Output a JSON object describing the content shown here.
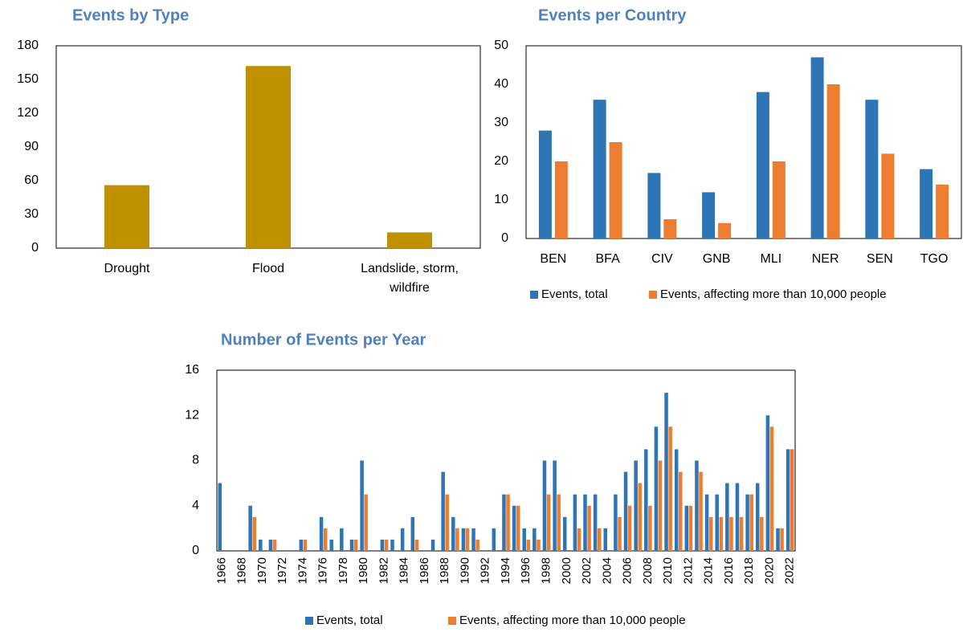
{
  "chart_data": [
    {
      "type": "bar",
      "title": "Events by Type",
      "categories": [
        "Drought",
        "Flood",
        "Landslide, storm, wildfire"
      ],
      "values": [
        56,
        162,
        14
      ],
      "color": "#bf9000",
      "ylim": [
        0,
        180
      ],
      "yticks": [
        0,
        30,
        60,
        90,
        120,
        150,
        180
      ],
      "grid": false
    },
    {
      "type": "bar",
      "title": "Events per Country",
      "categories": [
        "BEN",
        "BFA",
        "CIV",
        "GNB",
        "MLI",
        "NER",
        "SEN",
        "TGO"
      ],
      "series": [
        {
          "name": "Events, total",
          "color": "#2e75b6",
          "values": [
            28,
            36,
            17,
            12,
            38,
            47,
            36,
            18
          ]
        },
        {
          "name": "Events, affecting more than 10,000 people",
          "color": "#ed7d31",
          "values": [
            20,
            25,
            5,
            4,
            20,
            40,
            22,
            14
          ]
        }
      ],
      "ylim": [
        0,
        50
      ],
      "yticks": [
        0,
        10,
        20,
        30,
        40,
        50
      ],
      "grid": false,
      "legend": "bottom-left"
    },
    {
      "type": "bar",
      "title": "Number of Events per Year",
      "categories": [
        "1966",
        null,
        "1968",
        null,
        "1970",
        null,
        "1972",
        null,
        "1974",
        null,
        "1976",
        null,
        "1978",
        null,
        "1980",
        null,
        "1982",
        null,
        "1984",
        null,
        "1986",
        null,
        "1988",
        null,
        "1990",
        null,
        "1992",
        null,
        "1994",
        null,
        "1996",
        null,
        "1998",
        null,
        "2000",
        null,
        "2002",
        null,
        "2004",
        null,
        "2006",
        null,
        "2008",
        null,
        "2010",
        null,
        "2012",
        null,
        "2014",
        null,
        "2016",
        null,
        "2018",
        null,
        "2020",
        null,
        "2022"
      ],
      "series": [
        {
          "name": "Events, total",
          "color": "#2e75b6",
          "values": [
            6,
            0,
            0,
            4,
            1,
            1,
            0,
            0,
            1,
            0,
            3,
            1,
            2,
            1,
            8,
            0,
            1,
            1,
            2,
            3,
            0,
            1,
            7,
            3,
            2,
            2,
            0,
            2,
            5,
            4,
            2,
            2,
            8,
            8,
            3,
            5,
            5,
            5,
            2,
            5,
            7,
            8,
            9,
            11,
            14,
            9,
            4,
            8,
            5,
            5,
            6,
            6,
            5,
            6,
            12,
            2,
            9
          ]
        },
        {
          "name": "Events, affecting more than 10,000 people",
          "color": "#ed7d31",
          "values": [
            0,
            0,
            0,
            3,
            0,
            1,
            0,
            0,
            1,
            0,
            2,
            0,
            0,
            1,
            5,
            0,
            1,
            0,
            0,
            1,
            0,
            0,
            5,
            2,
            2,
            1,
            0,
            0,
            5,
            4,
            1,
            1,
            5,
            5,
            0,
            2,
            4,
            2,
            0,
            3,
            4,
            6,
            4,
            8,
            11,
            7,
            4,
            7,
            3,
            3,
            3,
            3,
            5,
            3,
            11,
            2,
            9
          ]
        }
      ],
      "ylim": [
        0,
        16
      ],
      "yticks": [
        0,
        4,
        8,
        12,
        16
      ],
      "grid": false,
      "legend": "bottom"
    }
  ]
}
